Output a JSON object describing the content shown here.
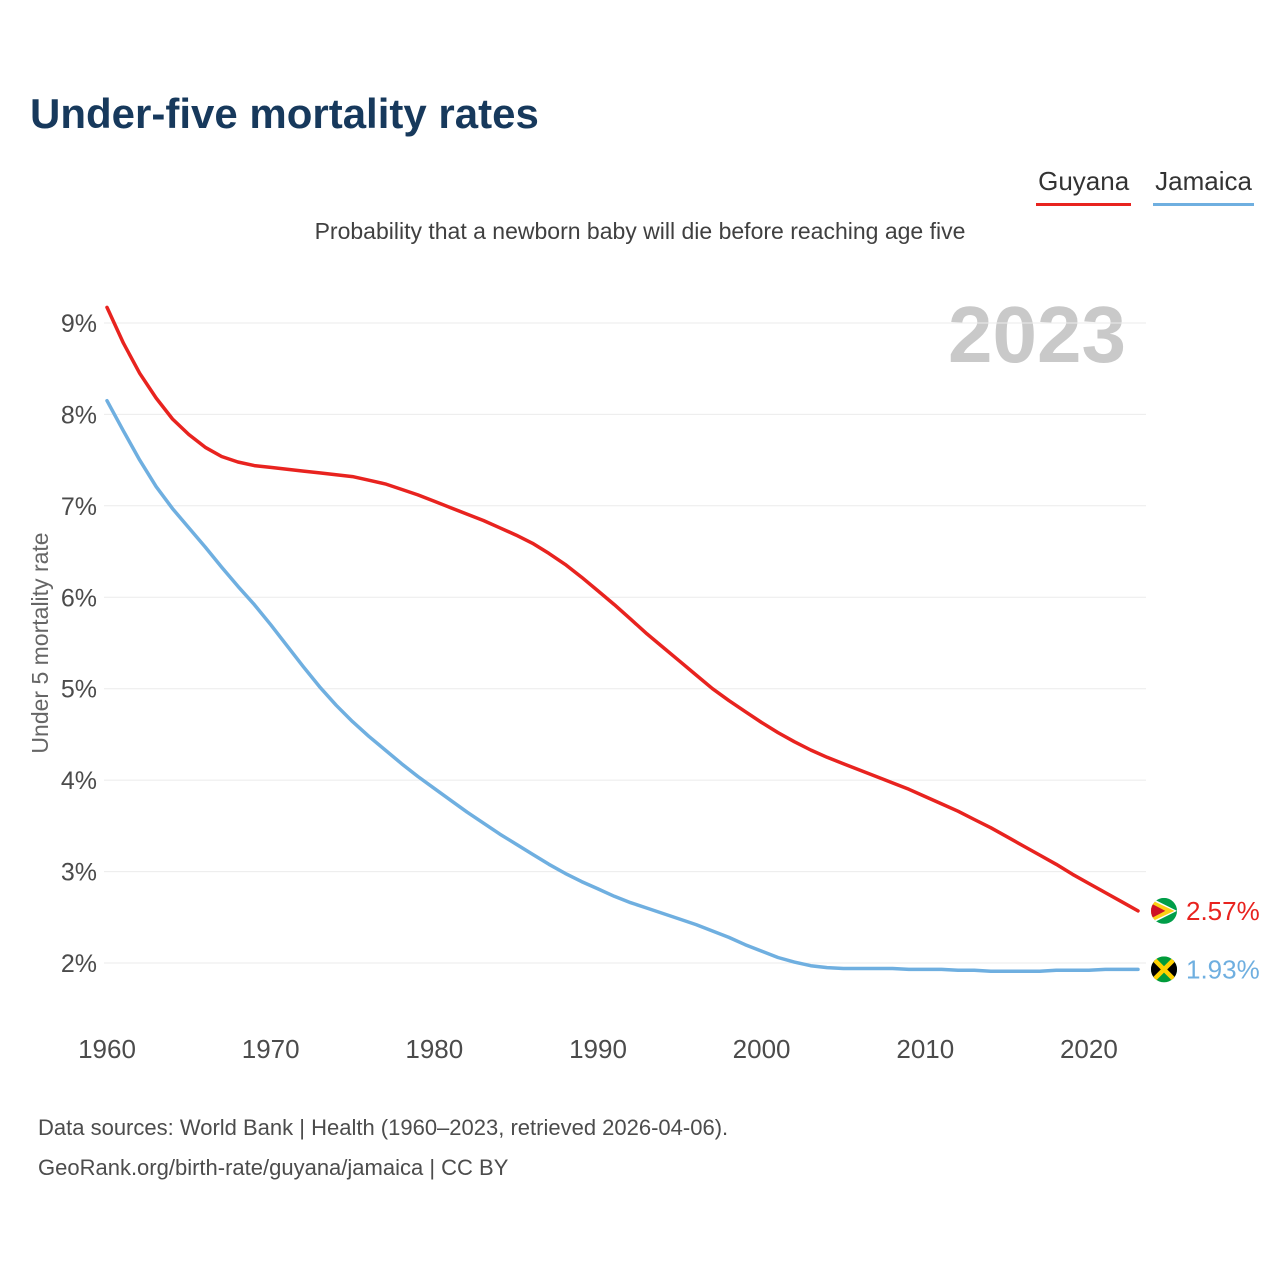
{
  "page": {
    "title": "Under-five mortality rates",
    "subtitle": "Probability that a newborn baby will die before reaching age five",
    "watermark": "2023",
    "title_color": "#17395c",
    "watermark_color": "#c9c9c9"
  },
  "legend": {
    "items": [
      {
        "label": "Guyana",
        "color": "#e8231f"
      },
      {
        "label": "Jamaica",
        "color": "#6fafe0"
      }
    ]
  },
  "footer": {
    "line1": "Data sources: World Bank | Health (1960–2023, retrieved 2026-04-06).",
    "line2": "GeoRank.org/birth-rate/guyana/jamaica | CC BY"
  },
  "chart_data": {
    "type": "line",
    "title": "Under-five mortality rates",
    "subtitle": "Probability that a newborn baby will die before reaching age five",
    "xlabel": "",
    "ylabel": "Under 5 mortality rate",
    "xlim": [
      1960,
      2023
    ],
    "ylim": [
      1.6,
      9.3
    ],
    "grid": true,
    "legend_position": "top-right",
    "x_ticks": [
      1960,
      1970,
      1980,
      1990,
      2000,
      2010,
      2020
    ],
    "y_ticks": [
      2,
      3,
      4,
      5,
      6,
      7,
      8,
      9
    ],
    "y_tick_format": "percent",
    "x": [
      1960,
      1961,
      1962,
      1963,
      1964,
      1965,
      1966,
      1967,
      1968,
      1969,
      1970,
      1971,
      1972,
      1973,
      1974,
      1975,
      1976,
      1977,
      1978,
      1979,
      1980,
      1981,
      1982,
      1983,
      1984,
      1985,
      1986,
      1987,
      1988,
      1989,
      1990,
      1991,
      1992,
      1993,
      1994,
      1995,
      1996,
      1997,
      1998,
      1999,
      2000,
      2001,
      2002,
      2003,
      2004,
      2005,
      2006,
      2007,
      2008,
      2009,
      2010,
      2011,
      2012,
      2013,
      2014,
      2015,
      2016,
      2017,
      2018,
      2019,
      2020,
      2021,
      2022,
      2023
    ],
    "series": [
      {
        "name": "Guyana",
        "color": "#e8231f",
        "flag": "guyana",
        "end_label": "2.57%",
        "end_value": 2.57,
        "values": [
          9.17,
          8.78,
          8.45,
          8.18,
          7.95,
          7.78,
          7.64,
          7.54,
          7.48,
          7.44,
          7.42,
          7.4,
          7.38,
          7.36,
          7.34,
          7.32,
          7.28,
          7.24,
          7.18,
          7.12,
          7.05,
          6.98,
          6.91,
          6.84,
          6.76,
          6.68,
          6.59,
          6.48,
          6.36,
          6.22,
          6.07,
          5.92,
          5.76,
          5.6,
          5.45,
          5.3,
          5.15,
          5.0,
          4.87,
          4.75,
          4.63,
          4.52,
          4.42,
          4.33,
          4.25,
          4.18,
          4.11,
          4.04,
          3.97,
          3.9,
          3.82,
          3.74,
          3.66,
          3.57,
          3.48,
          3.38,
          3.28,
          3.18,
          3.08,
          2.97,
          2.87,
          2.77,
          2.67,
          2.57
        ]
      },
      {
        "name": "Jamaica",
        "color": "#6fafe0",
        "flag": "jamaica",
        "end_label": "1.93%",
        "end_value": 1.93,
        "values": [
          8.15,
          7.82,
          7.5,
          7.21,
          6.97,
          6.76,
          6.55,
          6.33,
          6.12,
          5.92,
          5.7,
          5.47,
          5.24,
          5.02,
          4.82,
          4.64,
          4.48,
          4.33,
          4.18,
          4.04,
          3.91,
          3.78,
          3.65,
          3.53,
          3.41,
          3.3,
          3.19,
          3.08,
          2.98,
          2.89,
          2.81,
          2.73,
          2.66,
          2.6,
          2.54,
          2.48,
          2.42,
          2.35,
          2.28,
          2.2,
          2.13,
          2.06,
          2.01,
          1.97,
          1.95,
          1.94,
          1.94,
          1.94,
          1.94,
          1.93,
          1.93,
          1.93,
          1.92,
          1.92,
          1.91,
          1.91,
          1.91,
          1.91,
          1.92,
          1.92,
          1.92,
          1.93,
          1.93,
          1.93
        ]
      }
    ]
  }
}
